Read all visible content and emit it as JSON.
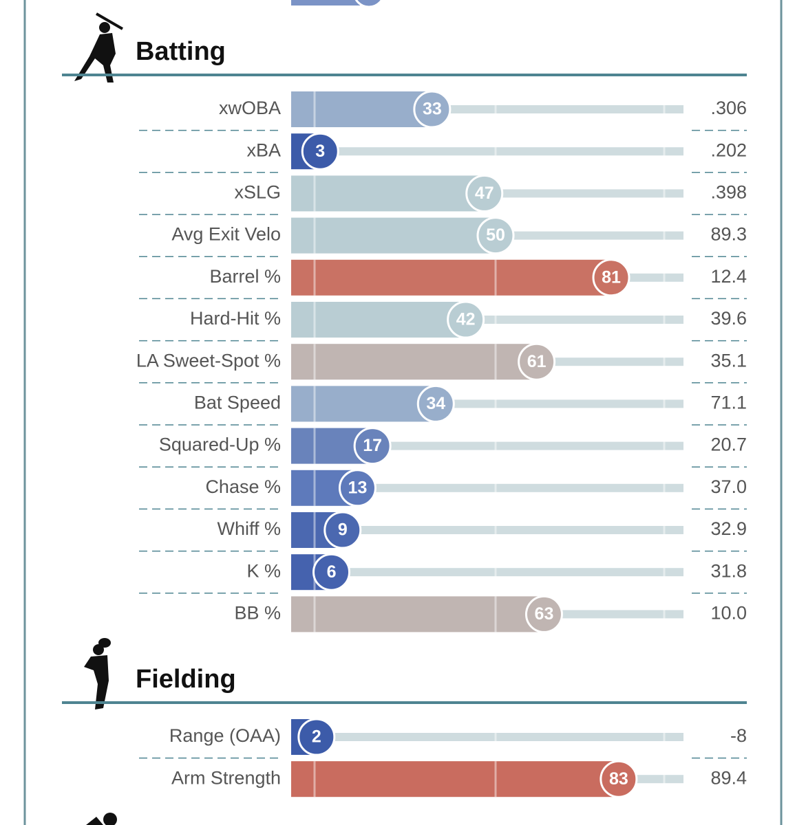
{
  "chart_data": [
    {
      "type": "bar",
      "title": "Batting",
      "categories": [
        "xwOBA",
        "xBA",
        "xSLG",
        "Avg Exit Velo",
        "Barrel %",
        "Hard-Hit %",
        "LA Sweet-Spot %",
        "Bat Speed",
        "Squared-Up %",
        "Chase %",
        "Whiff %",
        "K %",
        "BB %"
      ],
      "values": [
        33,
        3,
        47,
        50,
        81,
        42,
        61,
        34,
        17,
        13,
        9,
        6,
        63
      ],
      "colors": [
        "#98aecb",
        "#3c5ba9",
        "#b9cdd3",
        "#b9cdd3",
        "#c97264",
        "#b9cdd3",
        "#c0b5b2",
        "#98aecb",
        "#6983bb",
        "#5e7abb",
        "#4b68b0",
        "#4562ae",
        "#c0b5b2"
      ],
      "stat_labels": [
        ".306",
        ".202",
        ".398",
        "89.3",
        "12.4",
        "39.6",
        "35.1",
        "71.1",
        "20.7",
        "37.0",
        "32.9",
        "31.8",
        "10.0"
      ],
      "xlim": [
        0,
        100
      ]
    },
    {
      "type": "bar",
      "title": "Fielding",
      "categories": [
        "Range (OAA)",
        "Arm Strength"
      ],
      "values": [
        2,
        83
      ],
      "colors": [
        "#3c5ba9",
        "#c96c5f"
      ],
      "stat_labels": [
        "-8",
        "89.4"
      ],
      "xlim": [
        0,
        100
      ]
    }
  ]
}
